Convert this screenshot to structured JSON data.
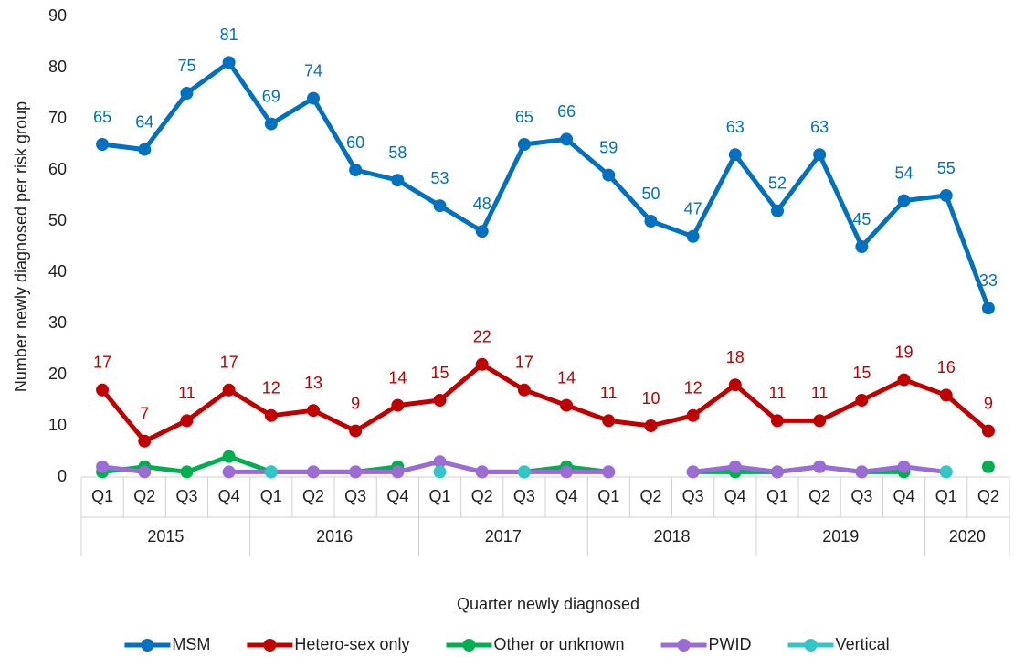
{
  "chart_data": {
    "type": "line",
    "x_label": "Quarter newly diagnosed",
    "y_label": "Number newly diagnosed per risk group",
    "categories": [
      "Q1",
      "Q2",
      "Q3",
      "Q4",
      "Q1",
      "Q2",
      "Q3",
      "Q4",
      "Q1",
      "Q2",
      "Q3",
      "Q4",
      "Q1",
      "Q2",
      "Q3",
      "Q4",
      "Q1",
      "Q2",
      "Q3",
      "Q4",
      "Q1",
      "Q2"
    ],
    "years": [
      "2015",
      null,
      null,
      null,
      "2016",
      null,
      null,
      null,
      "2017",
      null,
      null,
      null,
      "2018",
      null,
      null,
      null,
      "2019",
      null,
      null,
      null,
      "2020",
      null
    ],
    "ylim": [
      0,
      90
    ],
    "yticks": [
      0,
      10,
      20,
      30,
      40,
      50,
      60,
      70,
      80,
      90
    ],
    "grid": false,
    "legend": "bottom",
    "series": [
      {
        "name": "MSM",
        "color": "#0070c0",
        "data_labels": true,
        "values": [
          65,
          64,
          75,
          81,
          69,
          74,
          60,
          58,
          53,
          48,
          65,
          66,
          59,
          50,
          47,
          63,
          52,
          63,
          45,
          54,
          55,
          33
        ]
      },
      {
        "name": "Hetero-sex only",
        "color": "#c00000",
        "data_labels": true,
        "values": [
          17,
          7,
          11,
          17,
          12,
          13,
          9,
          14,
          15,
          22,
          17,
          14,
          11,
          10,
          12,
          18,
          11,
          11,
          15,
          19,
          16,
          9
        ]
      },
      {
        "name": "Other or unknown",
        "color": "#00b050",
        "data_labels": false,
        "values": [
          1,
          2,
          1,
          4,
          1,
          1,
          1,
          2,
          null,
          1,
          1,
          2,
          1,
          null,
          1,
          1,
          1,
          2,
          1,
          1,
          null,
          2
        ]
      },
      {
        "name": "PWID",
        "color": "#9b6bd6",
        "data_labels": false,
        "values": [
          2,
          1,
          null,
          1,
          1,
          1,
          1,
          1,
          3,
          1,
          1,
          1,
          1,
          null,
          1,
          2,
          1,
          2,
          1,
          2,
          1,
          null
        ]
      },
      {
        "name": "Vertical",
        "color": "#33c6c6",
        "data_labels": false,
        "values": [
          null,
          null,
          null,
          null,
          1,
          null,
          null,
          null,
          1,
          null,
          1,
          null,
          null,
          null,
          null,
          null,
          null,
          null,
          null,
          null,
          1,
          null
        ]
      }
    ]
  }
}
